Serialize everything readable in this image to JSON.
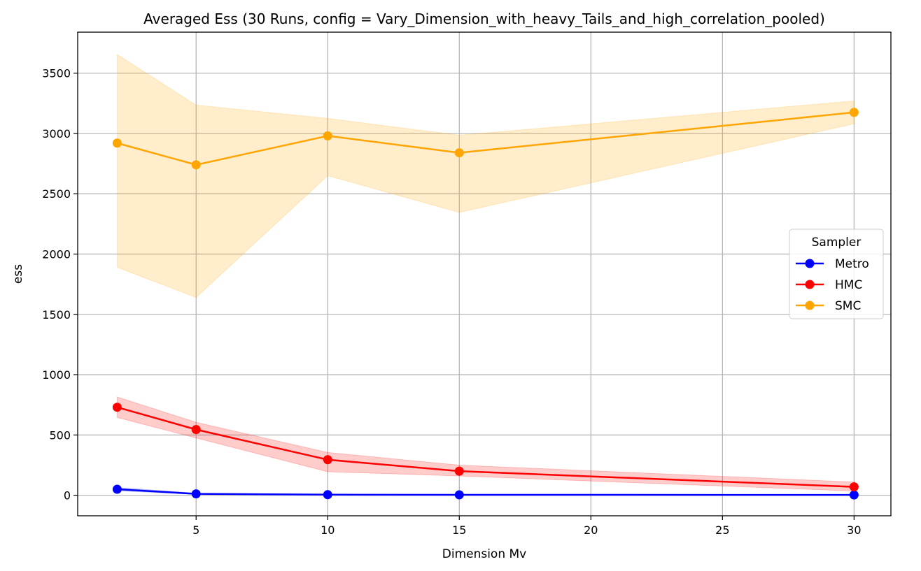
{
  "chart_data": {
    "type": "line",
    "title": "Averaged Ess (30 Runs, config = Vary_Dimension_with_heavy_Tails_and_high_correlation_pooled)",
    "xlabel": "Dimension Mv",
    "ylabel": "ess",
    "x": [
      2,
      5,
      10,
      15,
      30
    ],
    "xlim": [
      0.5,
      31.4
    ],
    "ylim": [
      -170,
      3840
    ],
    "xticks": [
      5,
      10,
      15,
      20,
      25,
      30
    ],
    "yticks": [
      0,
      500,
      1000,
      1500,
      2000,
      2500,
      3000,
      3500
    ],
    "grid": true,
    "legend": {
      "title": "Sampler",
      "location": "center right"
    },
    "series": [
      {
        "name": "Metro",
        "color": "#0000ff",
        "values": [
          50,
          12,
          5,
          4,
          3
        ],
        "band_lower": [
          38,
          8,
          3,
          2,
          2
        ],
        "band_upper": [
          65,
          17,
          7,
          6,
          4
        ]
      },
      {
        "name": "HMC",
        "color": "#ff0000",
        "values": [
          730,
          545,
          295,
          200,
          70
        ],
        "band_lower": [
          645,
          475,
          195,
          160,
          35
        ],
        "band_upper": [
          815,
          605,
          355,
          250,
          110
        ]
      },
      {
        "name": "SMC",
        "color": "#ffa500",
        "values": [
          2920,
          2740,
          2980,
          2840,
          3175
        ],
        "band_lower": [
          1890,
          1640,
          2650,
          2345,
          3080
        ],
        "band_upper": [
          3655,
          3235,
          3125,
          2985,
          3270
        ]
      }
    ]
  }
}
